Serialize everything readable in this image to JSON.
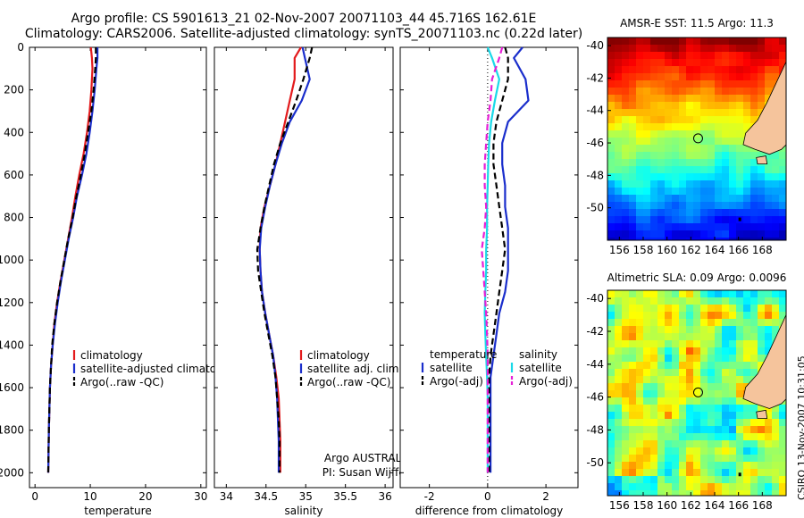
{
  "header": {
    "line1": "Argo profile: CS 5901613_21 02-Nov-2007 20071103_44 45.716S 162.61E",
    "line2": "Climatology: CARS2006. Satellite-adjusted climatology: synTS_20071103.nc (0.22d later)"
  },
  "side_text": "CSIRO 13-Nov-2007 10:31:05",
  "colors": {
    "red": "#e31a1c",
    "blue": "#1a2ecc",
    "black": "#000000",
    "cyan": "#19d9e8",
    "magenta": "#e61fd6",
    "land": "#f5c49c",
    "marker": "#000000"
  },
  "chart_data": [
    {
      "type": "line",
      "panel": "temperature",
      "xlabel": "temperature",
      "ylabel": "",
      "xlim": [
        -1,
        31
      ],
      "ylim": [
        2070,
        0
      ],
      "xticks": [
        0,
        10,
        20,
        30
      ],
      "yticks": [
        0,
        200,
        400,
        600,
        800,
        1000,
        1200,
        1400,
        1600,
        1800,
        2000
      ],
      "series": [
        {
          "name": "climatology",
          "color": "red",
          "style": "solid",
          "x": [
            10.1,
            10.3,
            10.4,
            10.2,
            9.9,
            9.4,
            8.8,
            8.0,
            7.3,
            6.7,
            6.0,
            5.3,
            4.6,
            4.0,
            3.5,
            3.2,
            2.9,
            2.7,
            2.6,
            2.5,
            2.4
          ],
          "y": [
            0,
            50,
            100,
            200,
            300,
            400,
            500,
            600,
            700,
            800,
            900,
            1000,
            1100,
            1200,
            1300,
            1400,
            1500,
            1600,
            1700,
            1800,
            2000
          ]
        },
        {
          "name": "satellite-adjusted climatology",
          "color": "blue",
          "style": "solid",
          "x": [
            11.3,
            11.3,
            11.1,
            10.8,
            10.4,
            9.9,
            9.3,
            8.5,
            7.6,
            6.9,
            6.1,
            5.4,
            4.7,
            4.1,
            3.6,
            3.2,
            2.9,
            2.7,
            2.6,
            2.5,
            2.4
          ],
          "y": [
            0,
            50,
            100,
            200,
            300,
            400,
            500,
            600,
            700,
            800,
            900,
            1000,
            1100,
            1200,
            1300,
            1400,
            1500,
            1600,
            1700,
            1800,
            2000
          ]
        },
        {
          "name": "Argo(..raw -QC)",
          "color": "black",
          "style": "dashed",
          "x": [
            11.0,
            11.0,
            10.9,
            10.6,
            10.2,
            9.6,
            9.0,
            8.3,
            7.5,
            6.8,
            6.0,
            5.3,
            4.6,
            4.0,
            3.5,
            3.1,
            2.9,
            2.7,
            2.6,
            2.5,
            2.4
          ],
          "y": [
            0,
            50,
            100,
            200,
            300,
            400,
            500,
            600,
            700,
            800,
            900,
            1000,
            1100,
            1200,
            1300,
            1400,
            1500,
            1600,
            1700,
            1800,
            2000
          ]
        }
      ],
      "legend": [
        "climatology",
        "satellite-adjusted climatology",
        "Argo(..raw -QC)"
      ]
    },
    {
      "type": "line",
      "panel": "salinity",
      "xlabel": "salinity",
      "ylabel": "",
      "xlim": [
        33.85,
        36.1
      ],
      "ylim": [
        2070,
        0
      ],
      "xticks": [
        34,
        34.5,
        35,
        35.5,
        36
      ],
      "yticks": [
        0,
        200,
        400,
        600,
        800,
        1000,
        1200,
        1400,
        1600,
        1800,
        2000
      ],
      "series": [
        {
          "name": "climatology",
          "color": "red",
          "style": "solid",
          "x": [
            34.94,
            34.86,
            34.86,
            34.8,
            34.74,
            34.68,
            34.62,
            34.55,
            34.48,
            34.43,
            34.42,
            34.43,
            34.45,
            34.49,
            34.54,
            34.59,
            34.63,
            34.66,
            34.67,
            34.68,
            34.68
          ],
          "y": [
            0,
            50,
            150,
            250,
            350,
            450,
            550,
            650,
            750,
            850,
            950,
            1050,
            1150,
            1250,
            1350,
            1450,
            1550,
            1650,
            1750,
            1850,
            2000
          ]
        },
        {
          "name": "satellite adj. clim.",
          "color": "blue",
          "style": "solid",
          "x": [
            34.96,
            34.99,
            35.05,
            34.95,
            34.8,
            34.7,
            34.62,
            34.55,
            34.49,
            34.44,
            34.42,
            34.43,
            34.45,
            34.49,
            34.54,
            34.59,
            34.62,
            34.64,
            34.65,
            34.66,
            34.66
          ],
          "y": [
            0,
            50,
            150,
            250,
            350,
            450,
            550,
            650,
            750,
            850,
            950,
            1050,
            1150,
            1250,
            1350,
            1450,
            1550,
            1650,
            1750,
            1850,
            2000
          ]
        },
        {
          "name": "Argo(..raw -QC)",
          "color": "black",
          "style": "dashed",
          "x": [
            35.08,
            35.05,
            34.97,
            34.88,
            34.78,
            34.68,
            34.6,
            34.54,
            34.48,
            34.43,
            34.39,
            34.4,
            34.44,
            34.48,
            34.53,
            34.58,
            34.62,
            34.64,
            34.66,
            34.67,
            34.67
          ],
          "y": [
            0,
            50,
            150,
            250,
            350,
            450,
            550,
            650,
            750,
            850,
            950,
            1050,
            1150,
            1250,
            1350,
            1450,
            1550,
            1650,
            1750,
            1850,
            2000
          ]
        }
      ],
      "legend": [
        "climatology",
        "satellite adj. clim.",
        "Argo(..raw -QC)"
      ],
      "annotations": [
        "Argo AUSTRALIA",
        "PI: Susan Wijffels"
      ]
    },
    {
      "type": "line",
      "panel": "difference",
      "xlabel": "difference from climatology",
      "ylabel": "",
      "xlim": [
        -3,
        3.1
      ],
      "ylim": [
        2070,
        0
      ],
      "xticks": [
        -2,
        0,
        2
      ],
      "yticks": [
        0,
        200,
        400,
        600,
        800,
        1000,
        1200,
        1400,
        1600,
        1800,
        2000
      ],
      "series": [
        {
          "name": "satellite",
          "group": "temperature",
          "color": "blue",
          "style": "solid",
          "x": [
            1.2,
            0.9,
            1.3,
            1.4,
            0.7,
            0.5,
            0.5,
            0.6,
            0.6,
            0.7,
            0.7,
            0.7,
            0.6,
            0.4,
            0.3,
            0.2,
            0.1,
            0.1,
            0.1,
            0.1,
            0.1
          ],
          "y": [
            0,
            50,
            150,
            250,
            350,
            450,
            550,
            650,
            750,
            850,
            950,
            1050,
            1150,
            1250,
            1350,
            1450,
            1550,
            1650,
            1750,
            1850,
            2000
          ]
        },
        {
          "name": "Argo(-adj)",
          "group": "temperature",
          "color": "black",
          "style": "dashed",
          "x": [
            0.6,
            0.7,
            0.7,
            0.5,
            0.3,
            0.2,
            0.2,
            0.3,
            0.4,
            0.5,
            0.6,
            0.5,
            0.4,
            0.3,
            0.2,
            0.1,
            0.05,
            0.05,
            0.05,
            0.05,
            0.05
          ],
          "y": [
            0,
            50,
            150,
            250,
            350,
            450,
            550,
            650,
            750,
            850,
            950,
            1050,
            1150,
            1250,
            1350,
            1450,
            1550,
            1650,
            1750,
            1850,
            2000
          ]
        },
        {
          "name": "satellite",
          "group": "salinity",
          "color": "cyan",
          "style": "solid",
          "x": [
            0.0,
            0.15,
            0.4,
            0.25,
            0.12,
            0.05,
            0.02,
            0.0,
            -0.02,
            -0.02,
            -0.05,
            -0.05,
            -0.08,
            -0.1,
            -0.08,
            -0.05,
            -0.02,
            0.0,
            0.0,
            0.0,
            0.0
          ],
          "y": [
            0,
            50,
            150,
            250,
            350,
            450,
            550,
            650,
            750,
            850,
            950,
            1050,
            1150,
            1250,
            1350,
            1450,
            1550,
            1650,
            1750,
            1850,
            2000
          ]
        },
        {
          "name": "Argo(-adj)",
          "group": "salinity",
          "color": "magenta",
          "style": "dashed",
          "x": [
            0.5,
            0.4,
            0.15,
            0.1,
            0.0,
            -0.05,
            -0.1,
            -0.1,
            -0.05,
            -0.1,
            -0.2,
            -0.15,
            -0.1,
            -0.05,
            -0.02,
            0.0,
            0.0,
            0.0,
            0.0,
            0.0,
            0.0
          ],
          "y": [
            0,
            50,
            150,
            250,
            350,
            450,
            550,
            650,
            750,
            850,
            950,
            1050,
            1150,
            1250,
            1350,
            1450,
            1550,
            1650,
            1750,
            1850,
            2000
          ]
        }
      ],
      "legend_groups": [
        {
          "title": "temperature",
          "items": [
            "satellite",
            "Argo(-adj)"
          ]
        },
        {
          "title": "salinity",
          "items": [
            "satellite",
            "Argo(-adj)"
          ]
        }
      ]
    },
    {
      "type": "heatmap",
      "panel": "sst_map",
      "title": "AMSR-E SST: 11.5 Argo: 11.3",
      "xlim": [
        155,
        170
      ],
      "ylim": [
        -52,
        -39.5
      ],
      "xticks": [
        156,
        158,
        160,
        162,
        164,
        166,
        168
      ],
      "yticks": [
        -40,
        -42,
        -44,
        -46,
        -48,
        -50
      ],
      "marker": {
        "lon": 162.61,
        "lat": -45.716
      }
    },
    {
      "type": "heatmap",
      "panel": "sla_map",
      "title": "Altimetric SLA: 0.09 Argo: 0.0096",
      "xlim": [
        155,
        170
      ],
      "ylim": [
        -52,
        -39.5
      ],
      "xticks": [
        156,
        158,
        160,
        162,
        164,
        166,
        168
      ],
      "yticks": [
        -40,
        -42,
        -44,
        -46,
        -48,
        -50
      ],
      "marker": {
        "lon": 162.61,
        "lat": -45.716
      }
    }
  ]
}
